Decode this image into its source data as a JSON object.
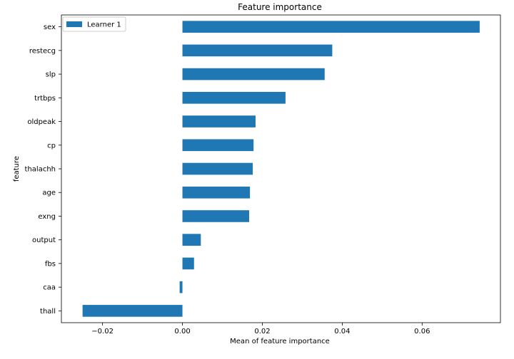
{
  "chart_data": {
    "type": "bar",
    "orientation": "horizontal",
    "title": "Feature importance",
    "xlabel": "Mean of feature importance",
    "ylabel": "feature",
    "categories": [
      "sex",
      "restecg",
      "slp",
      "trtbps",
      "oldpeak",
      "cp",
      "thalachh",
      "age",
      "exng",
      "output",
      "fbs",
      "caa",
      "thall"
    ],
    "series": [
      {
        "name": "Learner 1",
        "values": [
          0.0744,
          0.0375,
          0.0356,
          0.0258,
          0.0183,
          0.0178,
          0.0176,
          0.0169,
          0.0167,
          0.0046,
          0.0029,
          -0.0007,
          -0.025
        ]
      }
    ],
    "xlim": [
      -0.0303,
      0.0796
    ],
    "xticks": [
      -0.02,
      0.0,
      0.02,
      0.04,
      0.06
    ],
    "xtick_labels": [
      "−0.02",
      "0.00",
      "0.02",
      "0.04",
      "0.06"
    ],
    "grid": false,
    "legend_position": "top-left",
    "colors": {
      "bar": "#1f77b4",
      "axis": "#000000",
      "background": "#ffffff"
    }
  }
}
